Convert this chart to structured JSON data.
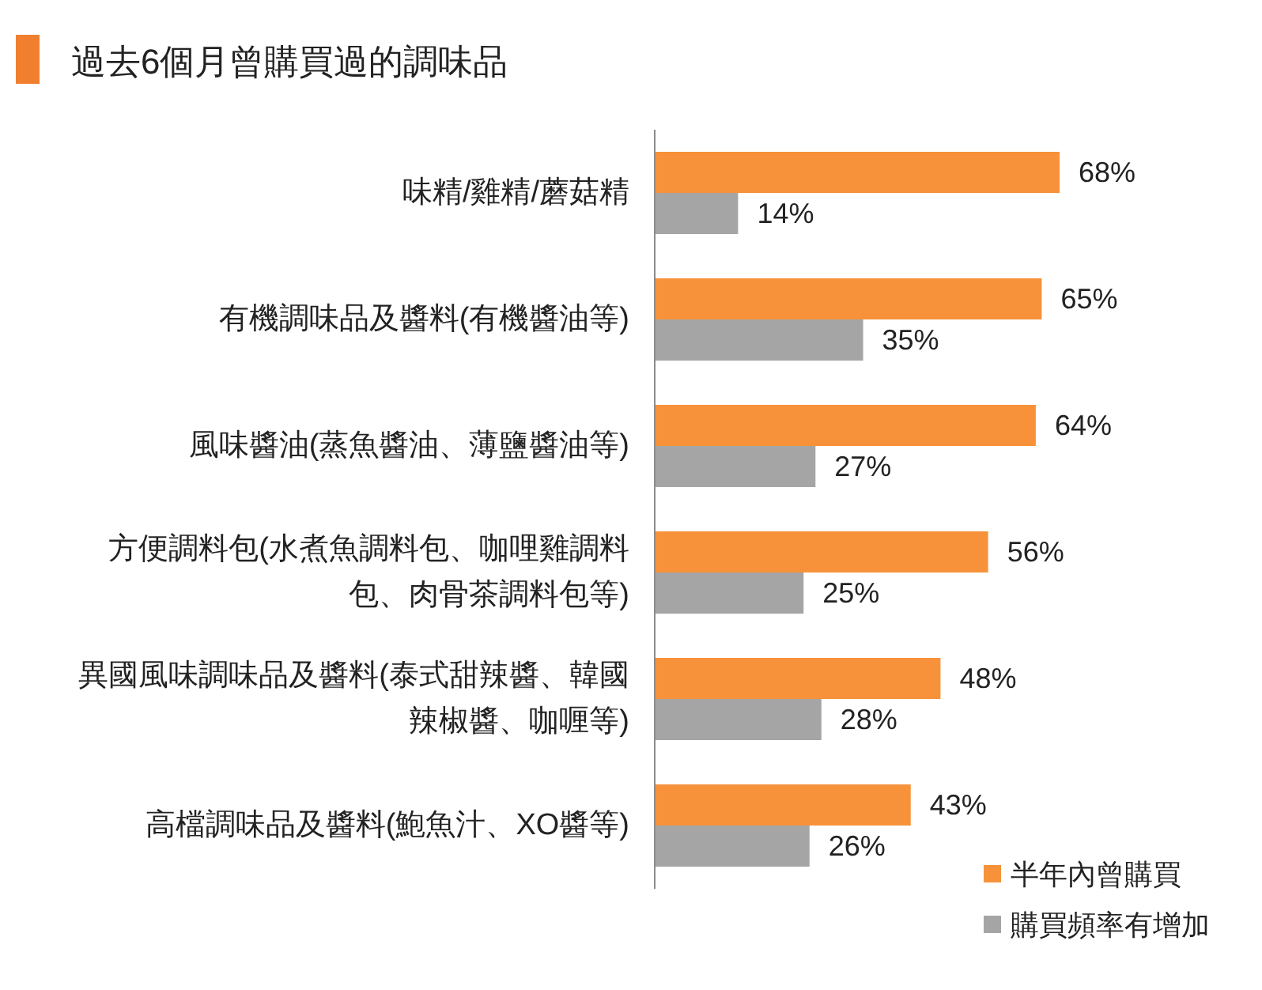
{
  "chart_data": {
    "type": "bar",
    "orientation": "horizontal",
    "title": "過去6個月曾購買過的調味品",
    "categories": [
      "味精/雞精/蘑菇精",
      "有機調味品及醬料(有機醬油等)",
      "風味醬油(蒸魚醬油、薄鹽醬油等)",
      "方便調料包(水煮魚調料包、咖哩雞調料包、肉骨茶調料包等)",
      "異國風味調味品及醬料(泰式甜辣醬、韓國辣椒醬、咖喱等)",
      "高檔調味品及醬料(鮑魚汁、XO醬等)"
    ],
    "series": [
      {
        "name": "半年內曾購買",
        "color": "#f7923a",
        "values": [
          68,
          65,
          64,
          56,
          48,
          43
        ],
        "value_labels": [
          "68%",
          "65%",
          "64%",
          "56%",
          "48%",
          "43%"
        ]
      },
      {
        "name": "購買頻率有增加",
        "color": "#a5a5a5",
        "values": [
          14,
          35,
          27,
          25,
          28,
          26
        ],
        "value_labels": [
          "14%",
          "35%",
          "27%",
          "25%",
          "28%",
          "26%"
        ]
      }
    ],
    "legend": "bottom right"
  }
}
